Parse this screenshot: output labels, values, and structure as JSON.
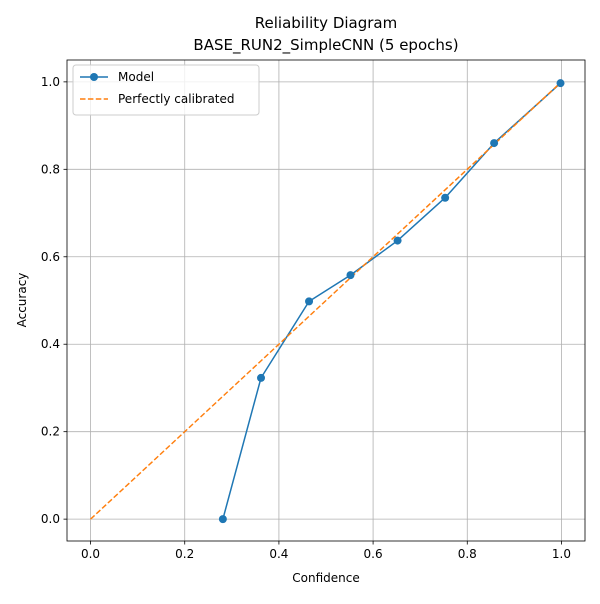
{
  "chart_data": {
    "type": "line",
    "title": "Reliability Diagram",
    "subtitle": "BASE_RUN2_SimpleCNN (5 epochs)",
    "xlabel": "Confidence",
    "ylabel": "Accuracy",
    "xlim": [
      -0.05,
      1.05
    ],
    "ylim": [
      -0.05,
      1.05
    ],
    "xticks": [
      0.0,
      0.2,
      0.4,
      0.6,
      0.8,
      1.0
    ],
    "yticks": [
      0.0,
      0.2,
      0.4,
      0.6,
      0.8,
      1.0
    ],
    "xtick_labels": [
      "0.0",
      "0.2",
      "0.4",
      "0.6",
      "0.8",
      "1.0"
    ],
    "ytick_labels": [
      "0.0",
      "0.2",
      "0.4",
      "0.6",
      "0.8",
      "1.0"
    ],
    "grid": true,
    "legend_position": "top-left",
    "series": [
      {
        "name": "Model",
        "style": "solid-line-with-circle-markers",
        "color": "#1f77b4",
        "x": [
          0.281,
          0.362,
          0.464,
          0.552,
          0.652,
          0.753,
          0.857,
          0.998
        ],
        "y": [
          0.0,
          0.323,
          0.498,
          0.558,
          0.637,
          0.735,
          0.86,
          0.997
        ]
      },
      {
        "name": "Perfectly calibrated",
        "style": "dashed-line",
        "color": "#ff7f0e",
        "x": [
          0.0,
          1.0
        ],
        "y": [
          0.0,
          1.0
        ]
      }
    ]
  }
}
